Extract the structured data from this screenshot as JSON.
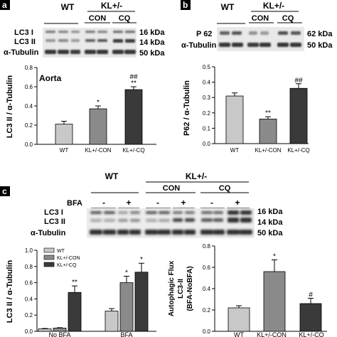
{
  "panel_a": {
    "letter": "a",
    "groups": {
      "wt": "WT",
      "kl": "KL+/-",
      "con": "CON",
      "cq": "CQ"
    },
    "blot_labels": [
      "LC3 I",
      "LC3 II",
      "α-Tubulin"
    ],
    "kda_labels": [
      "16 kDa",
      "14 kDa",
      "50 kDa"
    ],
    "ylabel": "LC3 II / α-Tubulin",
    "inset_title": "Aorta",
    "yticks": [
      "0.0",
      "0.2",
      "0.4",
      "0.6",
      "0.8"
    ],
    "xticks": [
      "WT",
      "KL+/-CON",
      "KL+/-CQ"
    ],
    "sig": [
      "",
      "*",
      "##\n**"
    ]
  },
  "panel_b": {
    "letter": "b",
    "groups": {
      "wt": "WT",
      "kl": "KL+/-",
      "con": "CON",
      "cq": "CQ"
    },
    "blot_labels": [
      "P 62",
      "α-Tubulin"
    ],
    "kda_labels": [
      "62 kDa",
      "50 kDa"
    ],
    "ylabel": "P62 / α-Tubulin",
    "yticks": [
      "0.0",
      "0.1",
      "0.2",
      "0.3",
      "0.4",
      "0.5"
    ],
    "xticks": [
      "WT",
      "KL+/-CON",
      "KL+/-CQ"
    ],
    "sig": [
      "",
      "**",
      "##"
    ]
  },
  "panel_c": {
    "letter": "c",
    "groups": {
      "wt": "WT",
      "kl": "KL+/-",
      "con": "CON",
      "cq": "CQ"
    },
    "bfa_label": "BFA",
    "bfa_signs": [
      "-",
      "+",
      "-",
      "+",
      "-",
      "+"
    ],
    "blot_labels": [
      "LC3 I",
      "LC3 II",
      "α-Tubulin"
    ],
    "kda_labels": [
      "16 kDa",
      "14 kDa",
      "50 kDa"
    ],
    "left_ylabel": "LC3 II / α-Tubulin",
    "left_yticks": [
      "0.0",
      "0.2",
      "0.4",
      "0.6",
      "0.8",
      "1.0"
    ],
    "left_xticks": [
      "No BFA",
      "BFA"
    ],
    "legend": [
      "WT",
      "KL+/-CON",
      "KL+/-CQ"
    ],
    "left_sig": [
      "",
      "",
      "**",
      "",
      "*",
      "*"
    ],
    "right_ylabel_lines": [
      "Autophagic Flux",
      "LC3-II",
      "(BFA-NoBFA)"
    ],
    "right_yticks": [
      "0.0",
      "0.2",
      "0.4",
      "0.6",
      "0.8"
    ],
    "right_xticks": [
      "WT",
      "KL+/-CON",
      "KL+/-CQ"
    ],
    "right_sig": [
      "",
      "*",
      "#"
    ]
  },
  "colors": {
    "wt": "#c8c8c8",
    "con": "#8a8a8a",
    "cq": "#3a3a3a"
  },
  "chart_data": [
    {
      "type": "bar",
      "title": "Aorta",
      "ylabel": "LC3 II / α-Tubulin",
      "categories": [
        "WT",
        "KL+/-CON",
        "KL+/-CQ"
      ],
      "values": [
        0.21,
        0.37,
        0.57
      ],
      "errors": [
        0.03,
        0.03,
        0.03
      ],
      "ylim": [
        0,
        0.8
      ],
      "yticks": [
        0,
        0.2,
        0.4,
        0.6,
        0.8
      ]
    },
    {
      "type": "bar",
      "title": "",
      "ylabel": "P62 / α-Tubulin",
      "categories": [
        "WT",
        "KL+/-CON",
        "KL+/-CQ"
      ],
      "values": [
        0.31,
        0.16,
        0.36
      ],
      "errors": [
        0.02,
        0.015,
        0.03
      ],
      "ylim": [
        0,
        0.5
      ],
      "yticks": [
        0,
        0.1,
        0.2,
        0.3,
        0.4,
        0.5
      ]
    },
    {
      "type": "bar",
      "title": "",
      "ylabel": "LC3 II / α-Tubulin",
      "categories": [
        "No BFA",
        "BFA"
      ],
      "series": [
        {
          "name": "WT",
          "values": [
            0.03,
            0.25
          ],
          "errors": [
            0.005,
            0.03
          ]
        },
        {
          "name": "KL+/-CON",
          "values": [
            0.04,
            0.6
          ],
          "errors": [
            0.005,
            0.08
          ]
        },
        {
          "name": "KL+/-CQ",
          "values": [
            0.48,
            0.73
          ],
          "errors": [
            0.08,
            0.11
          ]
        }
      ],
      "ylim": [
        0,
        1.0
      ],
      "yticks": [
        0,
        0.2,
        0.4,
        0.6,
        0.8,
        1.0
      ]
    },
    {
      "type": "bar",
      "title": "",
      "ylabel": "Autophagic Flux LC3-II (BFA-NoBFA)",
      "categories": [
        "WT",
        "KL+/-CON",
        "KL+/-CQ"
      ],
      "values": [
        0.22,
        0.56,
        0.26
      ],
      "errors": [
        0.02,
        0.11,
        0.05
      ],
      "ylim": [
        0,
        0.8
      ],
      "yticks": [
        0,
        0.2,
        0.4,
        0.6,
        0.8
      ]
    }
  ]
}
